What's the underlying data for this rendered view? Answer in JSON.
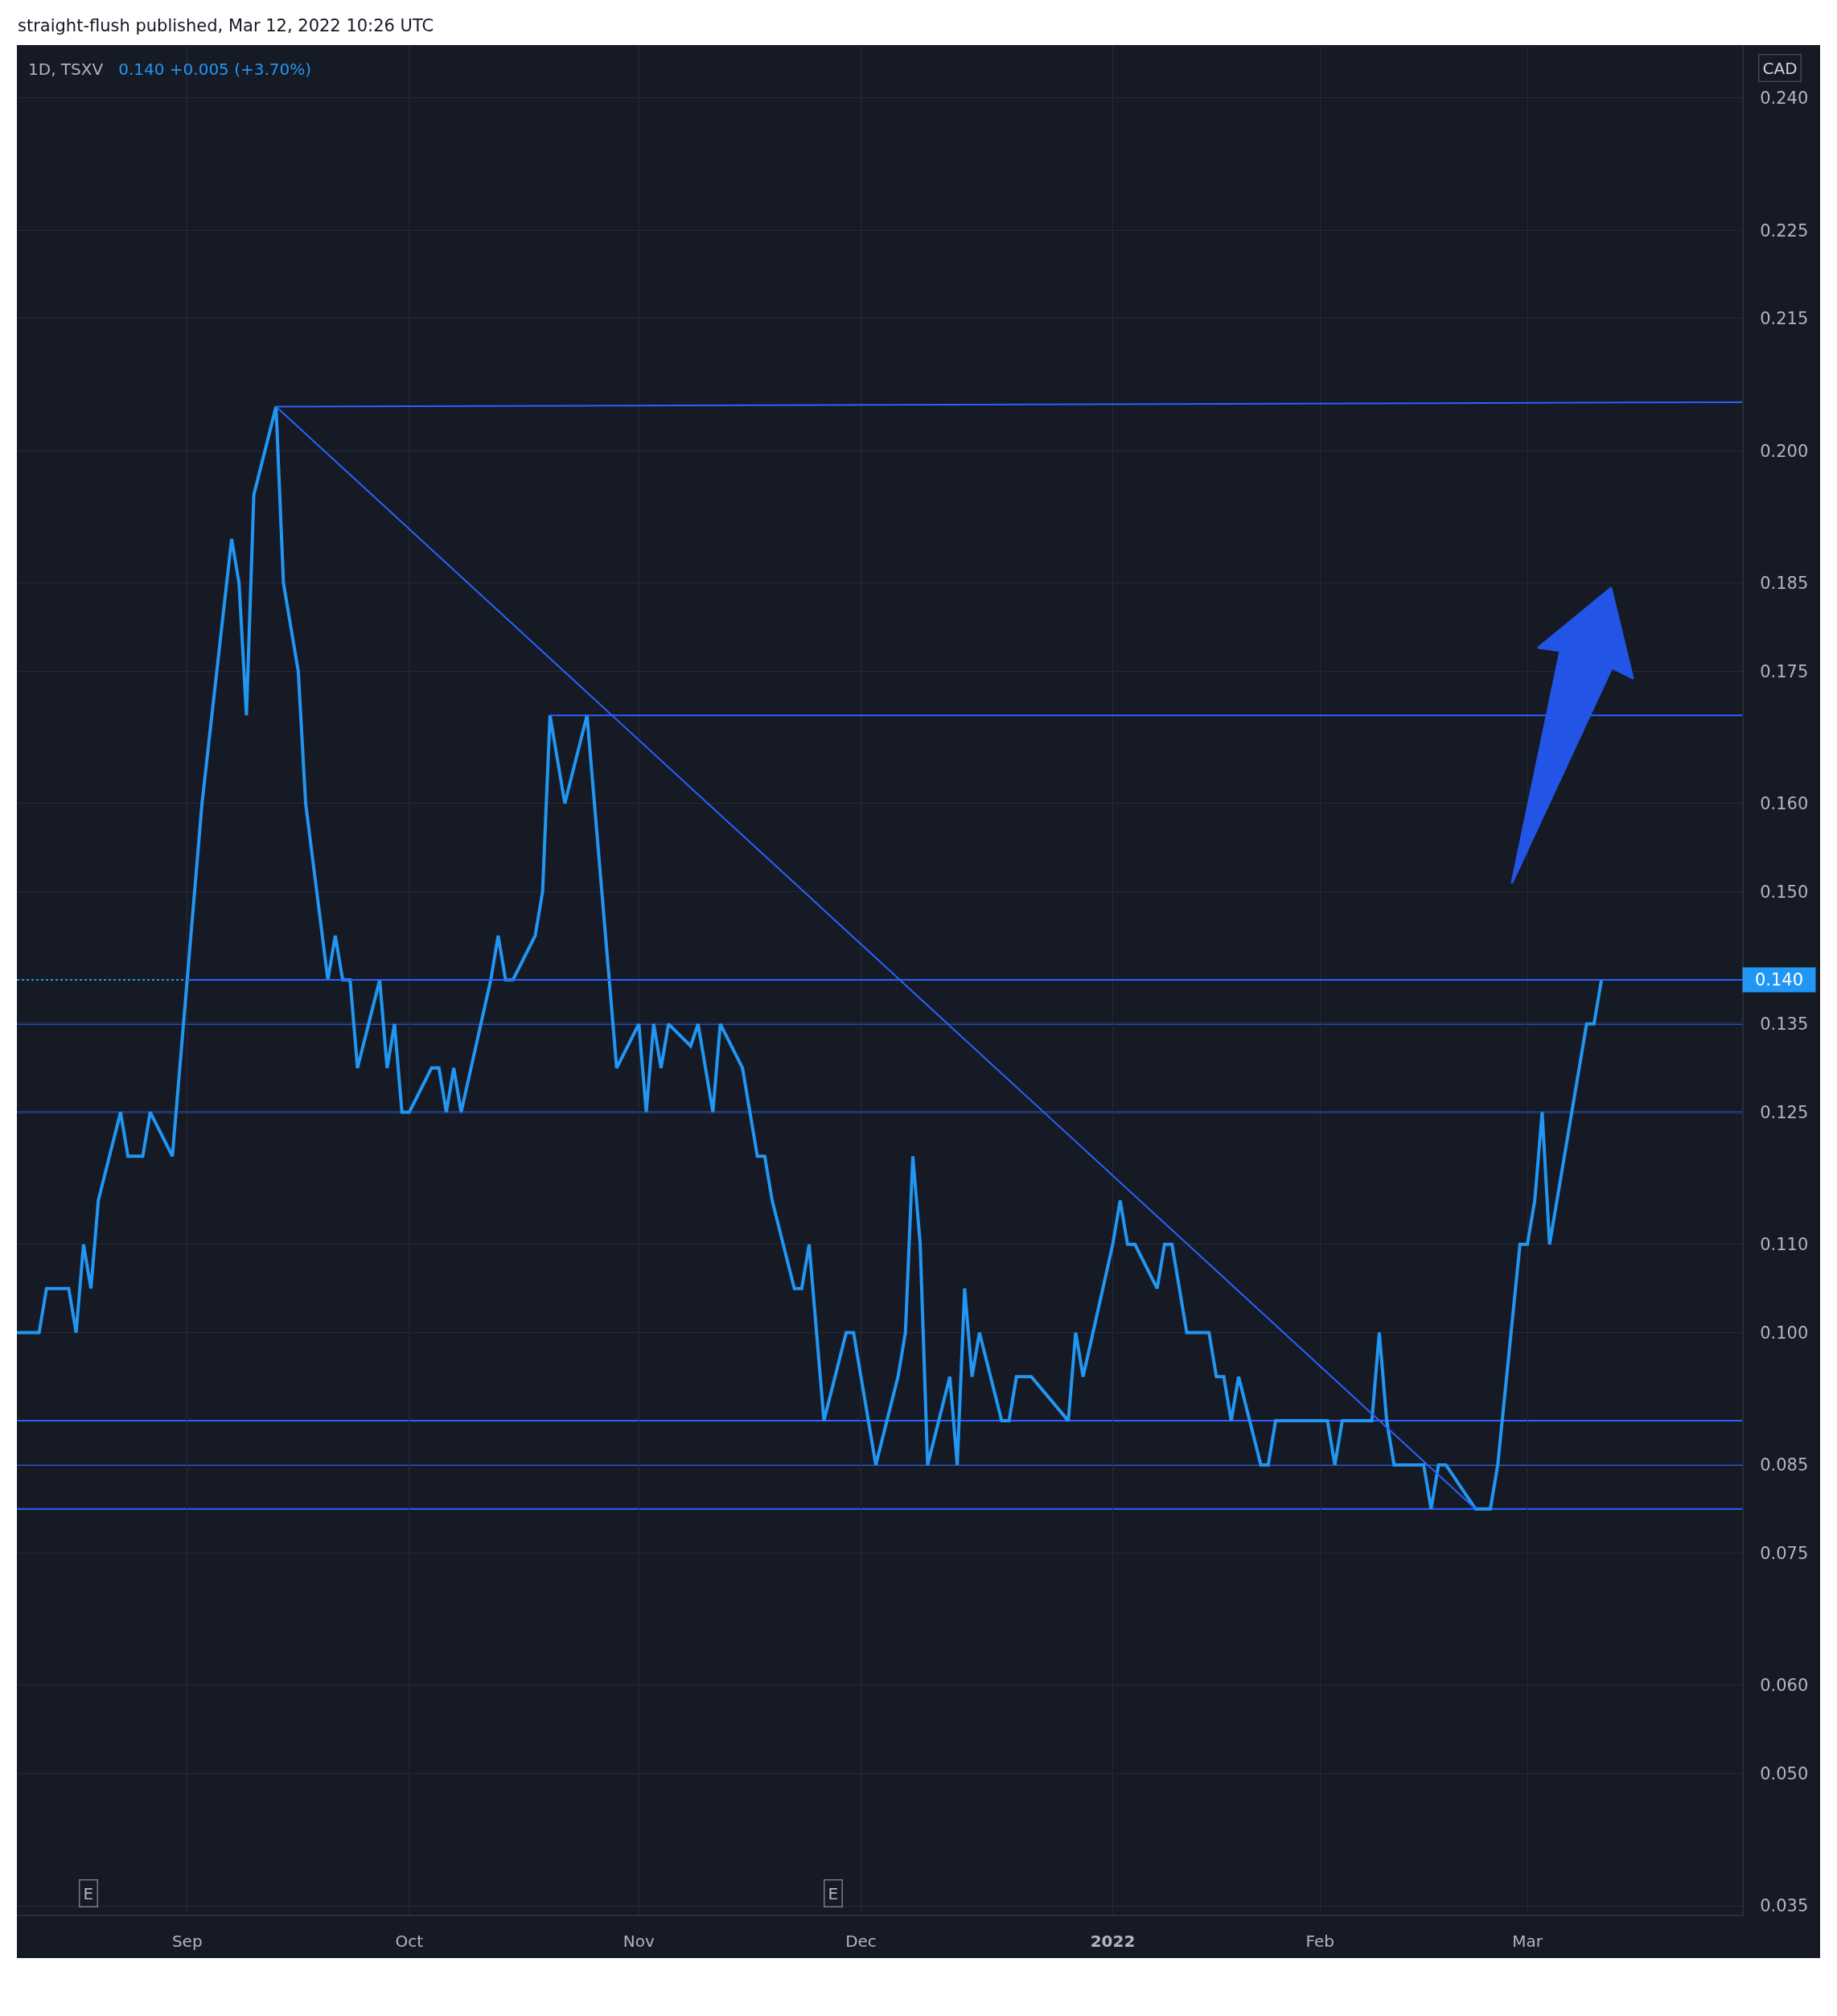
{
  "chart_data": {
    "type": "line",
    "title": "1D, TSXV",
    "subtitle": "0.140 +0.005 (+3.70%)",
    "ylabel": "CAD",
    "annotations": [
      "straight-flush published, Mar 12, 2022 10:26 UTC",
      "E",
      "E"
    ],
    "x": [
      "2021-08-09",
      "2021-08-10",
      "2021-08-11",
      "2021-08-12",
      "2021-08-13",
      "2021-08-16",
      "2021-08-17",
      "2021-08-18",
      "2021-08-19",
      "2021-08-20",
      "2021-08-23",
      "2021-08-24",
      "2021-08-25",
      "2021-08-26",
      "2021-08-27",
      "2021-08-30",
      "2021-08-31",
      "2021-09-01",
      "2021-09-02",
      "2021-09-03",
      "2021-09-07",
      "2021-09-08",
      "2021-09-09",
      "2021-09-10",
      "2021-09-13",
      "2021-09-14",
      "2021-09-15",
      "2021-09-16",
      "2021-09-17",
      "2021-09-20",
      "2021-09-21",
      "2021-09-22",
      "2021-09-23",
      "2021-09-24",
      "2021-09-27",
      "2021-09-28",
      "2021-09-29",
      "2021-09-30",
      "2021-10-01",
      "2021-10-04",
      "2021-10-05",
      "2021-10-06",
      "2021-10-07",
      "2021-10-08",
      "2021-10-12",
      "2021-10-13",
      "2021-10-14",
      "2021-10-15",
      "2021-10-18",
      "2021-10-19",
      "2021-10-20",
      "2021-10-21",
      "2021-10-22",
      "2021-10-25",
      "2021-10-26",
      "2021-10-27",
      "2021-10-28",
      "2021-10-29",
      "2021-11-01",
      "2021-11-02",
      "2021-11-03",
      "2021-11-04",
      "2021-11-05",
      "2021-11-08",
      "2021-11-09",
      "2021-11-10",
      "2021-11-11",
      "2021-11-12",
      "2021-11-15",
      "2021-11-16",
      "2021-11-17",
      "2021-11-18",
      "2021-11-19",
      "2021-11-22",
      "2021-11-23",
      "2021-11-24",
      "2021-11-25",
      "2021-11-26",
      "2021-11-29",
      "2021-11-30",
      "2021-12-01",
      "2021-12-02",
      "2021-12-03",
      "2021-12-06",
      "2021-12-07",
      "2021-12-08",
      "2021-12-09",
      "2021-12-10",
      "2021-12-13",
      "2021-12-14",
      "2021-12-15",
      "2021-12-16",
      "2021-12-17",
      "2021-12-20",
      "2021-12-21",
      "2021-12-22",
      "2021-12-23",
      "2021-12-24",
      "2021-12-29",
      "2021-12-30",
      "2021-12-31",
      "2022-01-04",
      "2022-01-05",
      "2022-01-06",
      "2022-01-07",
      "2022-01-10",
      "2022-01-11",
      "2022-01-12",
      "2022-01-13",
      "2022-01-14",
      "2022-01-17",
      "2022-01-18",
      "2022-01-19",
      "2022-01-20",
      "2022-01-21",
      "2022-01-24",
      "2022-01-25",
      "2022-01-26",
      "2022-01-27",
      "2022-01-28",
      "2022-01-31",
      "2022-02-01",
      "2022-02-02",
      "2022-02-03",
      "2022-02-04",
      "2022-02-07",
      "2022-02-08",
      "2022-02-09",
      "2022-02-10",
      "2022-02-11",
      "2022-02-14",
      "2022-02-15",
      "2022-02-16",
      "2022-02-17",
      "2022-02-18",
      "2022-02-22",
      "2022-02-23",
      "2022-02-24",
      "2022-02-25",
      "2022-02-28",
      "2022-03-01",
      "2022-03-02",
      "2022-03-03",
      "2022-03-04",
      "2022-03-07",
      "2022-03-08",
      "2022-03-09",
      "2022-03-10",
      "2022-03-11"
    ],
    "series": [
      {
        "color": "#2196f3",
        "values": [
          0.1,
          0.1,
          0.1,
          0.1,
          0.105,
          0.105,
          0.1,
          0.11,
          0.105,
          0.115,
          0.125,
          0.12,
          0.12,
          0.12,
          0.125,
          0.12,
          0.13,
          0.14,
          0.15,
          0.16,
          0.19,
          0.185,
          0.17,
          0.195,
          0.205,
          0.185,
          0.18,
          0.175,
          0.16,
          0.14,
          0.145,
          0.14,
          0.14,
          0.13,
          0.14,
          0.13,
          0.135,
          0.125,
          0.125,
          0.13,
          0.13,
          0.125,
          0.13,
          0.125,
          0.14,
          0.145,
          0.14,
          0.14,
          0.145,
          0.15,
          0.17,
          0.165,
          0.16,
          0.17,
          0.16,
          0.15,
          0.14,
          0.13,
          0.135,
          0.125,
          0.135,
          0.13,
          0.135,
          0.1325,
          0.135,
          0.13,
          0.125,
          0.135,
          0.13,
          0.125,
          0.12,
          0.12,
          0.115,
          0.105,
          0.105,
          0.11,
          0.1,
          0.09,
          0.1,
          0.1,
          0.095,
          0.09,
          0.085,
          0.095,
          0.1,
          0.12,
          0.11,
          0.085,
          0.095,
          0.085,
          0.105,
          0.095,
          0.1,
          0.09,
          0.09,
          0.095,
          0.095,
          0.095,
          0.09,
          0.1,
          0.095,
          0.11,
          0.115,
          0.11,
          0.11,
          0.105,
          0.11,
          0.11,
          0.105,
          0.1,
          0.1,
          0.095,
          0.095,
          0.09,
          0.095,
          0.085,
          0.085,
          0.09,
          0.09,
          0.09,
          0.09,
          0.09,
          0.09,
          0.085,
          0.09,
          0.09,
          0.09,
          0.1,
          0.09,
          0.085,
          0.085,
          0.085,
          0.08,
          0.085,
          0.085,
          0.08,
          0.08,
          0.08,
          0.085,
          0.11,
          0.11,
          0.115,
          0.125,
          0.11,
          0.125,
          0.13,
          0.135,
          0.135,
          0.14
        ]
      },
      {
        "type": "line",
        "color": "#2962ff",
        "x": [
          "2021-09-13",
          "2022-03-30"
        ],
        "values": [
          0.205,
          0.2055
        ]
      },
      {
        "type": "line",
        "color": "#2962ff",
        "x": [
          "2021-09-13",
          "2022-02-22"
        ],
        "values": [
          0.205,
          0.08
        ]
      },
      {
        "type": "line",
        "color": "#2962ff",
        "x": [
          "2021-10-20",
          "2022-03-30"
        ],
        "values": [
          0.17,
          0.17
        ]
      },
      {
        "type": "line",
        "color": "#2962ff",
        "x": [
          "2021-09-01",
          "2022-03-30"
        ],
        "values": [
          0.14,
          0.14
        ]
      }
    ],
    "xlim": [
      "2021-08-09",
      "2022-03-30"
    ],
    "xticks": [
      {
        "value": "2021-09-01",
        "label": "Sep"
      },
      {
        "value": "2021-10-01",
        "label": "Oct"
      },
      {
        "value": "2021-11-01",
        "label": "Nov"
      },
      {
        "value": "2021-12-01",
        "label": "Dec"
      },
      {
        "value": "2022-01-04",
        "label": "2022"
      },
      {
        "value": "2022-02-01",
        "label": "Feb"
      },
      {
        "value": "2022-03-01",
        "label": "Mar"
      }
    ],
    "ylim": [
      0.034,
      0.246
    ],
    "yticks": [
      {
        "value": 0.035,
        "label": "0.035"
      },
      {
        "value": 0.05,
        "label": "0.050"
      },
      {
        "value": 0.06,
        "label": "0.060"
      },
      {
        "value": 0.075,
        "label": "0.075"
      },
      {
        "value": 0.085,
        "label": "0.085"
      },
      {
        "value": 0.1,
        "label": "0.100"
      },
      {
        "value": 0.11,
        "label": "0.110"
      },
      {
        "value": 0.125,
        "label": "0.125"
      },
      {
        "value": 0.135,
        "label": "0.135"
      },
      {
        "value": 0.15,
        "label": "0.150"
      },
      {
        "value": 0.16,
        "label": "0.160"
      },
      {
        "value": 0.175,
        "label": "0.175"
      },
      {
        "value": 0.185,
        "label": "0.185"
      },
      {
        "value": 0.2,
        "label": "0.200"
      },
      {
        "value": 0.215,
        "label": "0.215"
      },
      {
        "value": 0.225,
        "label": "0.225"
      },
      {
        "value": 0.24,
        "label": "0.240"
      }
    ],
    "ref_lines": [
      {
        "axis": "y",
        "value": 0.14,
        "label": "0.140",
        "color": "#2196f3",
        "line_style": "dotted"
      },
      {
        "axis": "y",
        "value": 0.135,
        "color": "#2962ff"
      },
      {
        "axis": "y",
        "value": 0.125,
        "color": "#2962ff"
      },
      {
        "axis": "y",
        "value": 0.09,
        "color": "#2962ff"
      },
      {
        "axis": "y",
        "value": 0.085,
        "color": "#2962ff"
      },
      {
        "axis": "y",
        "value": 0.08,
        "color": "#2962ff"
      }
    ],
    "grid": true
  }
}
